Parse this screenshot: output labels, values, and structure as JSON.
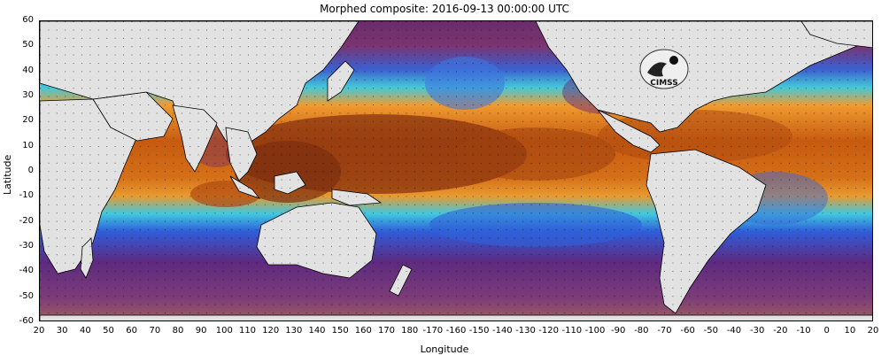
{
  "map": {
    "title": "Morphed composite: 2016-09-13 00:00:00 UTC",
    "xlabel": "Longitude",
    "ylabel": "Latitude",
    "lat_ticks": [
      "60",
      "50",
      "40",
      "30",
      "20",
      "10",
      "0",
      "-10",
      "-20",
      "-30",
      "-40",
      "-50",
      "-60"
    ],
    "lon_ticks": [
      "20",
      "30",
      "40",
      "50",
      "60",
      "70",
      "80",
      "90",
      "100",
      "110",
      "120",
      "130",
      "140",
      "150",
      "160",
      "170",
      "180",
      "-170",
      "-160",
      "-150",
      "-140",
      "-130",
      "-120",
      "-110",
      "-100",
      "-90",
      "-80",
      "-70",
      "-60",
      "-50",
      "-40",
      "-30",
      "-20",
      "-10",
      "0",
      "10",
      "20"
    ],
    "logo_text": "CIMSS",
    "colors": {
      "land": "#e2e2e2",
      "dry": "#5a2a78",
      "low": "#3070d8",
      "mid": "#40d0d0",
      "moist": "#f0a030",
      "very_moist": "#c05010",
      "wettest": "#803010"
    }
  }
}
